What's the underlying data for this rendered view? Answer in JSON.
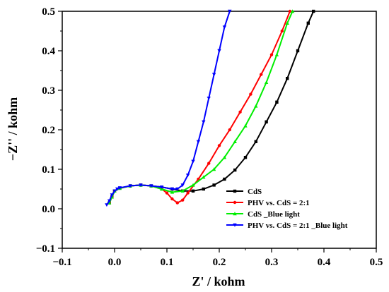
{
  "chart_data": {
    "type": "line",
    "xlabel": "Z' / kohm",
    "ylabel": "−Z'' / kohm",
    "xlim": [
      -0.1,
      0.5
    ],
    "ylim": [
      -0.1,
      0.5
    ],
    "xticks": [
      -0.1,
      0.0,
      0.1,
      0.2,
      0.3,
      0.4,
      0.5
    ],
    "yticks": [
      -0.1,
      0.0,
      0.1,
      0.2,
      0.3,
      0.4,
      0.5
    ],
    "xtick_labels": [
      "−0.1",
      "0.0",
      "0.1",
      "0.2",
      "0.3",
      "0.4",
      "0.5"
    ],
    "ytick_labels": [
      "−0.1",
      "0.0",
      "0.1",
      "0.2",
      "0.3",
      "0.4",
      "0.5"
    ],
    "grid": false,
    "legend_position": "lower-right",
    "series": [
      {
        "name": "CdS",
        "color": "#000000",
        "marker": "square",
        "x": [
          -0.01,
          -0.005,
          0.0,
          0.01,
          0.03,
          0.05,
          0.07,
          0.09,
          0.11,
          0.13,
          0.15,
          0.17,
          0.19,
          0.21,
          0.23,
          0.25,
          0.27,
          0.29,
          0.31,
          0.33,
          0.35,
          0.37,
          0.38
        ],
        "y": [
          0.015,
          0.03,
          0.045,
          0.052,
          0.058,
          0.06,
          0.058,
          0.055,
          0.05,
          0.045,
          0.045,
          0.05,
          0.06,
          0.075,
          0.098,
          0.13,
          0.17,
          0.22,
          0.27,
          0.33,
          0.4,
          0.47,
          0.5
        ]
      },
      {
        "name": "PHV vs. CdS = 2:1",
        "color": "#ff0000",
        "marker": "circle",
        "x": [
          -0.01,
          -0.005,
          0.0,
          0.01,
          0.03,
          0.05,
          0.07,
          0.09,
          0.1,
          0.11,
          0.12,
          0.13,
          0.14,
          0.16,
          0.18,
          0.2,
          0.22,
          0.24,
          0.26,
          0.28,
          0.3,
          0.32,
          0.335
        ],
        "y": [
          0.015,
          0.03,
          0.045,
          0.052,
          0.058,
          0.06,
          0.058,
          0.05,
          0.04,
          0.025,
          0.015,
          0.022,
          0.04,
          0.075,
          0.115,
          0.16,
          0.2,
          0.245,
          0.29,
          0.34,
          0.39,
          0.45,
          0.5
        ]
      },
      {
        "name": "CdS _Blue light",
        "color": "#00ee00",
        "marker": "triangle",
        "x": [
          -0.01,
          -0.005,
          0.0,
          0.01,
          0.03,
          0.05,
          0.07,
          0.09,
          0.11,
          0.13,
          0.15,
          0.17,
          0.19,
          0.21,
          0.23,
          0.25,
          0.27,
          0.29,
          0.31,
          0.33,
          0.34
        ],
        "y": [
          0.015,
          0.03,
          0.045,
          0.052,
          0.058,
          0.06,
          0.058,
          0.05,
          0.042,
          0.045,
          0.06,
          0.08,
          0.1,
          0.13,
          0.17,
          0.21,
          0.26,
          0.32,
          0.39,
          0.47,
          0.5
        ]
      },
      {
        "name": "PHV vs. CdS = 2:1 _Blue light",
        "color": "#0000ff",
        "marker": "triangle-down",
        "x": [
          -0.015,
          -0.01,
          -0.005,
          0.0,
          0.005,
          0.01,
          0.03,
          0.05,
          0.07,
          0.09,
          0.11,
          0.12,
          0.13,
          0.14,
          0.15,
          0.16,
          0.17,
          0.18,
          0.19,
          0.2,
          0.21,
          0.22
        ],
        "y": [
          0.01,
          0.02,
          0.035,
          0.045,
          0.05,
          0.053,
          0.058,
          0.06,
          0.058,
          0.055,
          0.05,
          0.05,
          0.06,
          0.085,
          0.12,
          0.17,
          0.22,
          0.28,
          0.34,
          0.4,
          0.46,
          0.5
        ]
      }
    ]
  }
}
